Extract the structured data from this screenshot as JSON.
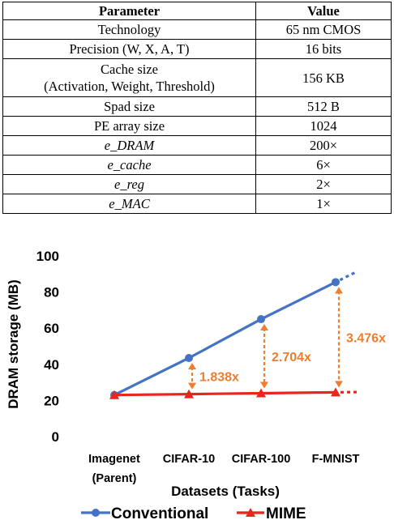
{
  "table": {
    "headers": [
      "Parameter",
      "Value"
    ],
    "rows": [
      {
        "param": "Technology",
        "value": "65 nm CMOS"
      },
      {
        "param": "Precision (W, X, A, T)",
        "value": "16 bits"
      },
      {
        "param": "Cache size",
        "param_line2": "(Activation, Weight, Threshold)",
        "value": "156 KB"
      },
      {
        "param": "Spad size",
        "value": "512 B"
      },
      {
        "param": "PE array size",
        "value": "1024"
      },
      {
        "param": "e_DRAM",
        "value": "200×"
      },
      {
        "param": "e_cache",
        "value": "6×"
      },
      {
        "param": "e_reg",
        "value": "2×"
      },
      {
        "param": "e_MAC",
        "value": "1×"
      }
    ]
  },
  "chart_data": {
    "type": "line",
    "xlabel": "Datasets (Tasks)",
    "ylabel": "DRAM storage (MB)",
    "categories": [
      "Imagenet (Parent)",
      "CIFAR-10",
      "CIFAR-100",
      "F-MNIST"
    ],
    "category_lines": [
      [
        "Imagenet",
        "(Parent)"
      ],
      [
        "CIFAR-10"
      ],
      [
        "CIFAR-100"
      ],
      [
        "F-MNIST"
      ]
    ],
    "ylim": [
      0,
      100
    ],
    "yticks": [
      0,
      20,
      40,
      60,
      80,
      100
    ],
    "grid": false,
    "legend_position": "bottom",
    "series": [
      {
        "name": "Conventional",
        "values": [
          23,
          43.5,
          65,
          85.5
        ],
        "color": "#4472C4",
        "marker": "circle",
        "continues": true
      },
      {
        "name": "MIME",
        "values": [
          23,
          23.5,
          24,
          24.5
        ],
        "color": "#E8261C",
        "marker": "triangle",
        "continues": true
      }
    ],
    "annotations": [
      {
        "category": "CIFAR-10",
        "label": "1.838x"
      },
      {
        "category": "CIFAR-100",
        "label": "2.704x"
      },
      {
        "category": "F-MNIST",
        "label": "3.476x"
      }
    ],
    "annotation_color": "#ED7D31"
  }
}
